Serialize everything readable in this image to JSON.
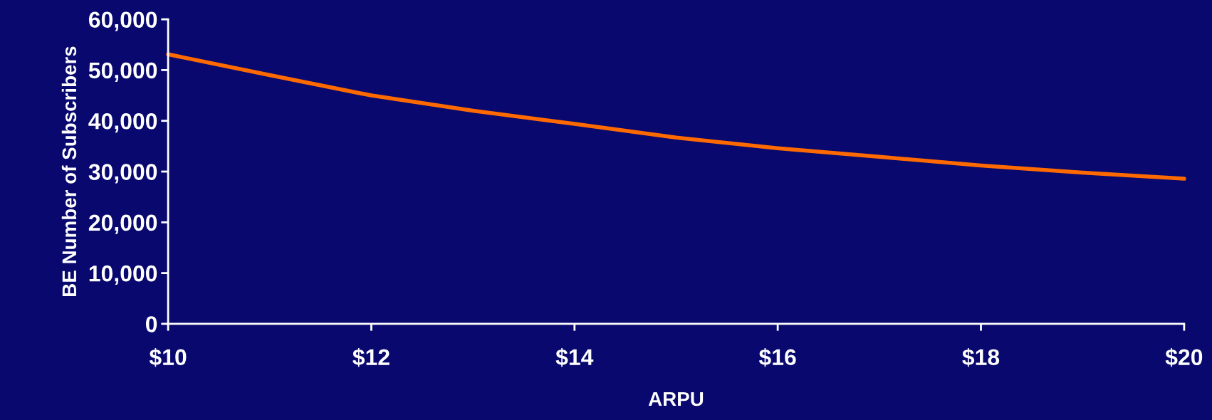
{
  "chart_data": {
    "type": "line",
    "xlabel": "ARPU",
    "ylabel": "BE Number of Subscribers",
    "x": [
      10,
      11,
      12,
      13,
      14,
      15,
      16,
      17,
      18,
      19,
      20
    ],
    "series": [
      {
        "color": "#ff6a00",
        "values": [
          53100,
          49000,
          45000,
          42000,
          39400,
          36700,
          34600,
          32900,
          31200,
          29800,
          28600
        ]
      }
    ],
    "xlim": [
      10,
      20
    ],
    "ylim": [
      0,
      60000
    ],
    "xticks": [
      {
        "value": 10,
        "label": "$10"
      },
      {
        "value": 12,
        "label": "$12"
      },
      {
        "value": 14,
        "label": "$14"
      },
      {
        "value": 16,
        "label": "$16"
      },
      {
        "value": 18,
        "label": "$18"
      },
      {
        "value": 20,
        "label": "$20"
      }
    ],
    "yticks": [
      0,
      {
        "value": 10000,
        "label": "10,000"
      },
      {
        "value": 20000,
        "label": "20,000"
      },
      {
        "value": 30000,
        "label": "30,000"
      },
      {
        "value": 40000,
        "label": "40,000"
      },
      {
        "value": 50000,
        "label": "50,000"
      },
      {
        "value": 60000,
        "label": "60,000"
      }
    ],
    "grid": false,
    "marker": "none",
    "line_style": "solid"
  }
}
